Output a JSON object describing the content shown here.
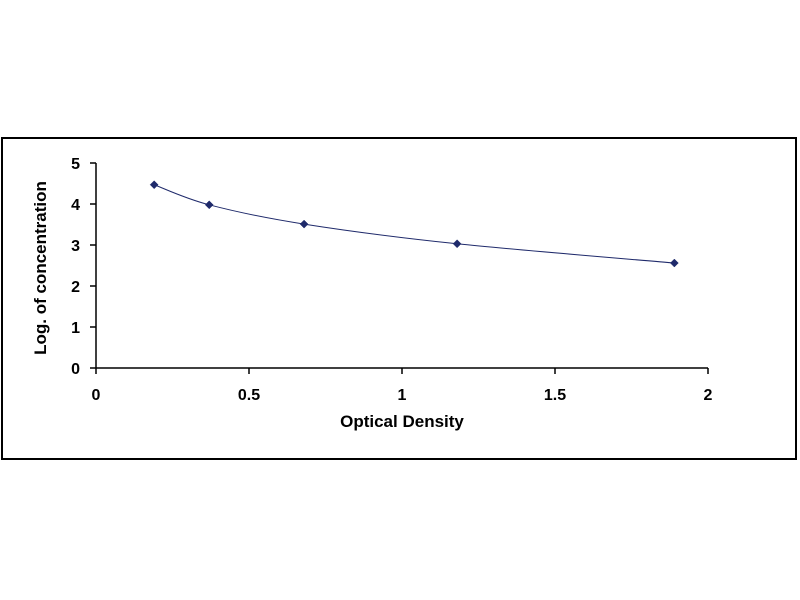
{
  "chart_data": {
    "type": "scatter",
    "title": "",
    "xlabel": "Optical Density",
    "ylabel": "Log. of concentration",
    "xlim": [
      0,
      2
    ],
    "ylim": [
      0,
      5
    ],
    "x_ticks": [
      0,
      0.5,
      1,
      1.5,
      2
    ],
    "x_tick_labels": [
      "0",
      "0.5",
      "1",
      "1.5",
      "2"
    ],
    "y_ticks": [
      0,
      1,
      2,
      3,
      4,
      5
    ],
    "y_tick_labels": [
      "0",
      "1",
      "2",
      "3",
      "4",
      "5"
    ],
    "grid": false,
    "legend": "none",
    "trendline": "smooth curve through points",
    "colors": {
      "marker": "#1f2a6b",
      "line": "#1f2a6b",
      "axis": "#000000"
    },
    "series": [
      {
        "x": [
          0.19,
          0.37,
          0.68,
          1.18,
          1.89
        ],
        "y": [
          4.47,
          3.98,
          3.51,
          3.03,
          2.56
        ]
      }
    ]
  }
}
